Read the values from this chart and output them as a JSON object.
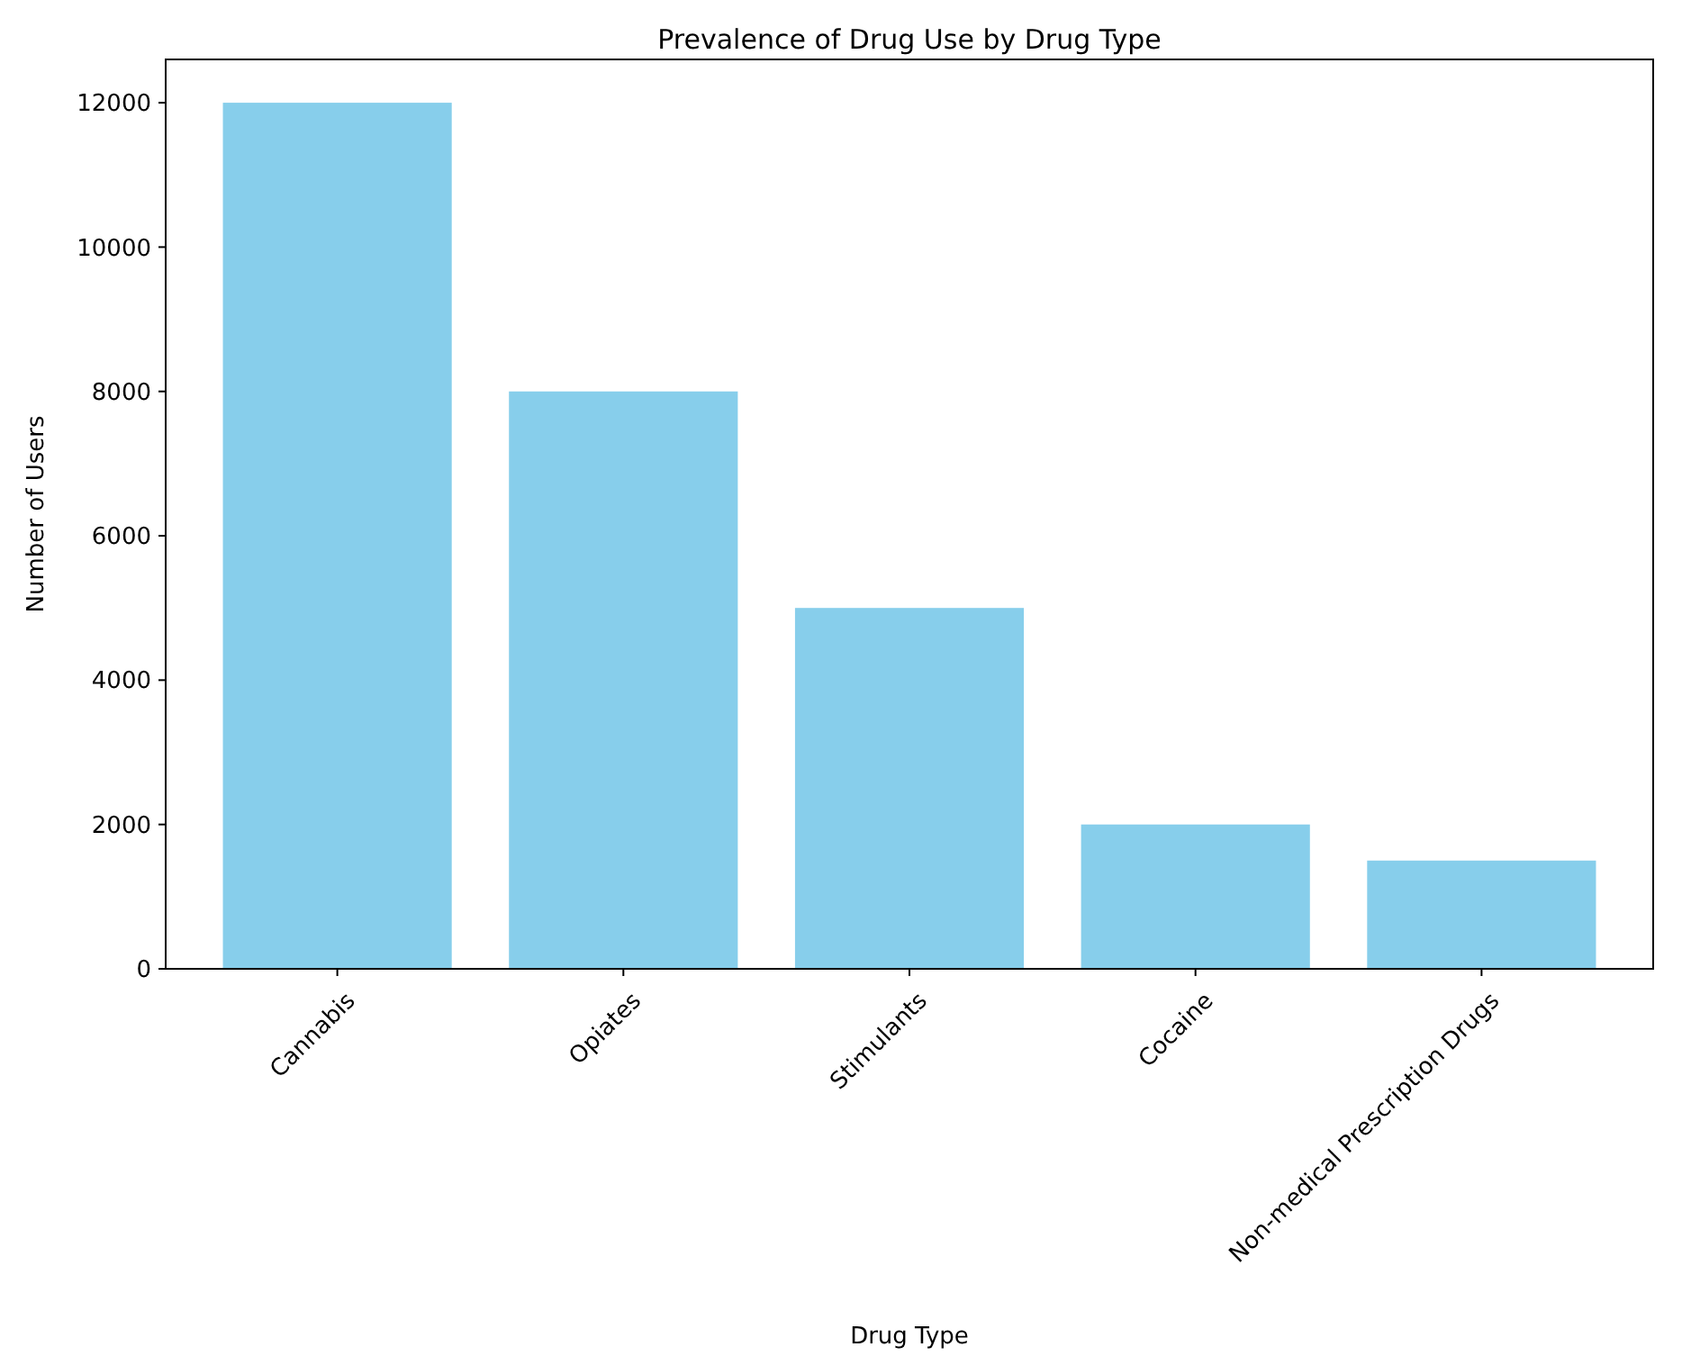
{
  "chart_data": {
    "type": "bar",
    "title": "Prevalence of Drug Use by Drug Type",
    "xlabel": "Drug Type",
    "ylabel": "Number of Users",
    "categories": [
      "Cannabis",
      "Opiates",
      "Stimulants",
      "Cocaine",
      "Non-medical Prescription Drugs"
    ],
    "values": [
      12000,
      8000,
      5000,
      2000,
      1500
    ],
    "color": "#87ceeb",
    "ylim": [
      0,
      12600
    ],
    "yticks": [
      0,
      2000,
      4000,
      6000,
      8000,
      10000,
      12000
    ],
    "grid": false
  }
}
